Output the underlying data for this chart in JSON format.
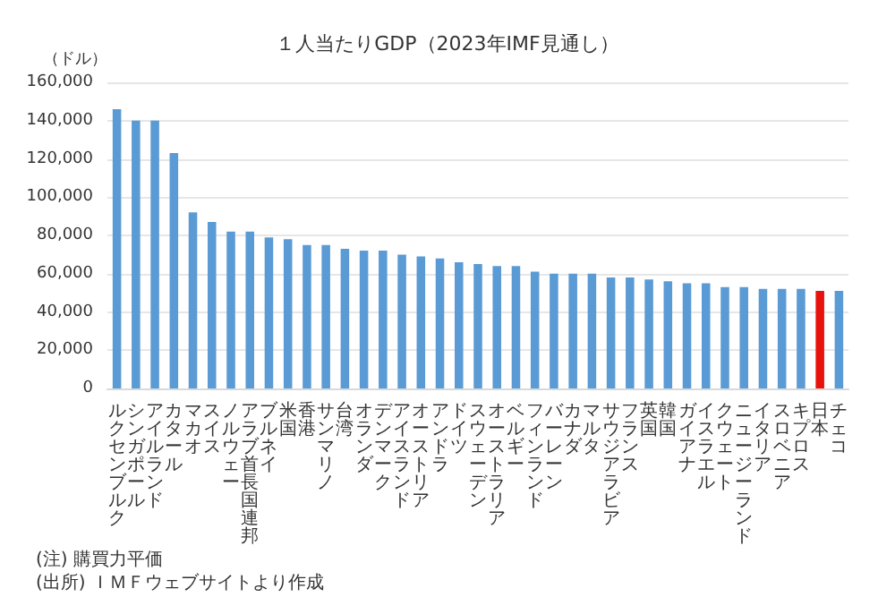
{
  "chart_data": {
    "type": "bar",
    "title": "１人当たりGDP（2023年IMF見通し）",
    "ylabel": "（ドル）",
    "categories": [
      "ルクセンブルク",
      "シンガポール",
      "アイルランド",
      "カタール",
      "マカオ",
      "スイス",
      "ノルウェー",
      "アラブ首長国連邦",
      "ブルネイ",
      "米国",
      "香港",
      "サンマリノ",
      "台湾",
      "オランダ",
      "デンマーク",
      "アイスランド",
      "オーストリア",
      "アンドラ",
      "ドイツ",
      "スウェーデン",
      "オーストラリア",
      "ベルギー",
      "フィンランド",
      "バーレーン",
      "カナダ",
      "マルタ",
      "サウジアラビア",
      "フランス",
      "英国",
      "韓国",
      "ガイアナ",
      "イスラエル",
      "クウェート",
      "ニュージーランド",
      "イタリア",
      "スロベニア",
      "キプロス",
      "日本",
      "チェコ"
    ],
    "values": [
      146000,
      140000,
      140000,
      123000,
      92000,
      87000,
      82000,
      82000,
      79000,
      78000,
      75000,
      75000,
      73000,
      72000,
      72000,
      70000,
      69000,
      68000,
      66000,
      65000,
      64000,
      64000,
      61000,
      60000,
      60000,
      60000,
      58000,
      58000,
      57000,
      56000,
      55000,
      55000,
      53000,
      53000,
      52000,
      52000,
      52000,
      51000,
      51000
    ],
    "colors": [
      "#5b9bd5",
      "#5b9bd5",
      "#5b9bd5",
      "#5b9bd5",
      "#5b9bd5",
      "#5b9bd5",
      "#5b9bd5",
      "#5b9bd5",
      "#5b9bd5",
      "#5b9bd5",
      "#5b9bd5",
      "#5b9bd5",
      "#5b9bd5",
      "#5b9bd5",
      "#5b9bd5",
      "#5b9bd5",
      "#5b9bd5",
      "#5b9bd5",
      "#5b9bd5",
      "#5b9bd5",
      "#5b9bd5",
      "#5b9bd5",
      "#5b9bd5",
      "#5b9bd5",
      "#5b9bd5",
      "#5b9bd5",
      "#5b9bd5",
      "#5b9bd5",
      "#5b9bd5",
      "#5b9bd5",
      "#5b9bd5",
      "#5b9bd5",
      "#5b9bd5",
      "#5b9bd5",
      "#5b9bd5",
      "#5b9bd5",
      "#5b9bd5",
      "#e8120c",
      "#5b9bd5"
    ],
    "ylim": [
      0,
      160000
    ],
    "yticks": [
      0,
      {
        "value": 20000,
        "label": "20,000"
      },
      {
        "value": 40000,
        "label": "40,000"
      },
      {
        "value": 60000,
        "label": "60,000"
      },
      {
        "value": 80000,
        "label": "80,000"
      },
      {
        "value": 100000,
        "label": "100,000"
      },
      {
        "value": 120000,
        "label": "120,000"
      },
      {
        "value": 140000,
        "label": "140,000"
      },
      {
        "value": 160000,
        "label": "160,000"
      }
    ],
    "grid": "y",
    "annotations": [
      "(注) 購買力平価",
      "(出所) ＩＭＦウェブサイトより作成"
    ]
  }
}
